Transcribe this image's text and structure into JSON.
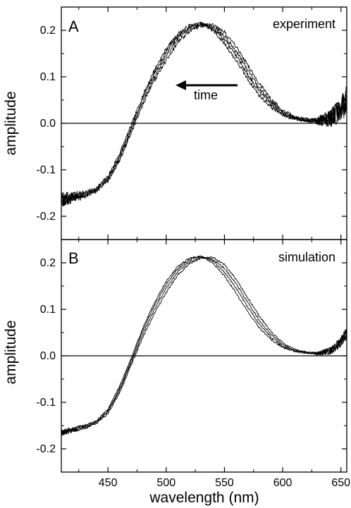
{
  "chart_data": [
    {
      "type": "line",
      "panel_label": "A",
      "annotation": "experiment",
      "arrow_label": "time",
      "ylabel": "amplitude",
      "xlabel": "",
      "xlim": [
        410,
        655
      ],
      "ylim": [
        -0.25,
        0.25
      ],
      "xticks": [
        "450",
        "500",
        "550",
        "600",
        "650"
      ],
      "yticks": [
        "-0.2",
        "-0.1",
        "0.0",
        "0.1",
        "0.2"
      ],
      "noise": "high",
      "series": [
        {
          "x": [
            410,
            430,
            440,
            450,
            460,
            470,
            480,
            490,
            500,
            510,
            520,
            530,
            540,
            550,
            560,
            570,
            580,
            590,
            600,
            610,
            620,
            630,
            640,
            645,
            650,
            655
          ],
          "y": [
            -0.165,
            -0.15,
            -0.14,
            -0.115,
            -0.065,
            -0.005,
            0.06,
            0.115,
            0.16,
            0.192,
            0.21,
            0.214,
            0.2,
            0.172,
            0.135,
            0.095,
            0.06,
            0.035,
            0.018,
            0.01,
            0.006,
            0.005,
            0.01,
            0.018,
            0.03,
            0.05
          ]
        },
        {
          "x": [
            410,
            430,
            440,
            450,
            460,
            470,
            480,
            490,
            500,
            510,
            520,
            530,
            540,
            550,
            560,
            570,
            580,
            590,
            600,
            610,
            620,
            630,
            640,
            645,
            650,
            655
          ],
          "y": [
            -0.165,
            -0.152,
            -0.142,
            -0.118,
            -0.07,
            -0.01,
            0.055,
            0.108,
            0.153,
            0.187,
            0.207,
            0.214,
            0.204,
            0.18,
            0.145,
            0.105,
            0.068,
            0.04,
            0.02,
            0.011,
            0.007,
            0.005,
            0.01,
            0.018,
            0.03,
            0.05
          ]
        },
        {
          "x": [
            410,
            430,
            440,
            450,
            460,
            470,
            480,
            490,
            500,
            510,
            520,
            530,
            540,
            550,
            560,
            570,
            580,
            590,
            600,
            610,
            620,
            630,
            640,
            645,
            650,
            655
          ],
          "y": [
            -0.165,
            -0.154,
            -0.144,
            -0.121,
            -0.075,
            -0.015,
            0.048,
            0.1,
            0.145,
            0.181,
            0.203,
            0.212,
            0.208,
            0.188,
            0.155,
            0.115,
            0.076,
            0.046,
            0.024,
            0.012,
            0.007,
            0.005,
            0.01,
            0.018,
            0.03,
            0.05
          ]
        },
        {
          "x": [
            410,
            430,
            440,
            450,
            460,
            470,
            480,
            490,
            500,
            510,
            520,
            530,
            540,
            550,
            560,
            570,
            580,
            590,
            600,
            610,
            620,
            630,
            640,
            645,
            650,
            655
          ],
          "y": [
            -0.165,
            -0.156,
            -0.146,
            -0.124,
            -0.08,
            -0.02,
            0.04,
            0.092,
            0.136,
            0.174,
            0.198,
            0.21,
            0.212,
            0.196,
            0.165,
            0.125,
            0.085,
            0.052,
            0.028,
            0.014,
            0.008,
            0.005,
            0.01,
            0.018,
            0.03,
            0.05
          ]
        }
      ]
    },
    {
      "type": "line",
      "panel_label": "B",
      "annotation": "simulation",
      "ylabel": "amplitude",
      "xlabel": "wavelength (nm)",
      "xlim": [
        410,
        655
      ],
      "ylim": [
        -0.25,
        0.25
      ],
      "xticks": [
        "450",
        "500",
        "550",
        "600",
        "650"
      ],
      "yticks": [
        "-0.2",
        "-0.1",
        "0.0",
        "0.1",
        "0.2"
      ],
      "noise": "low",
      "series": [
        {
          "x": [
            410,
            430,
            440,
            450,
            460,
            470,
            480,
            490,
            500,
            510,
            520,
            530,
            540,
            550,
            560,
            570,
            580,
            590,
            600,
            610,
            620,
            630,
            640,
            645,
            650,
            655
          ],
          "y": [
            -0.165,
            -0.15,
            -0.14,
            -0.115,
            -0.065,
            -0.005,
            0.06,
            0.115,
            0.16,
            0.192,
            0.21,
            0.214,
            0.2,
            0.172,
            0.135,
            0.095,
            0.06,
            0.035,
            0.018,
            0.01,
            0.006,
            0.005,
            0.01,
            0.018,
            0.03,
            0.05
          ]
        },
        {
          "x": [
            410,
            430,
            440,
            450,
            460,
            470,
            480,
            490,
            500,
            510,
            520,
            530,
            540,
            550,
            560,
            570,
            580,
            590,
            600,
            610,
            620,
            630,
            640,
            645,
            650,
            655
          ],
          "y": [
            -0.165,
            -0.152,
            -0.142,
            -0.118,
            -0.07,
            -0.01,
            0.055,
            0.108,
            0.153,
            0.187,
            0.207,
            0.214,
            0.204,
            0.18,
            0.145,
            0.105,
            0.068,
            0.04,
            0.02,
            0.011,
            0.007,
            0.005,
            0.01,
            0.018,
            0.03,
            0.05
          ]
        },
        {
          "x": [
            410,
            430,
            440,
            450,
            460,
            470,
            480,
            490,
            500,
            510,
            520,
            530,
            540,
            550,
            560,
            570,
            580,
            590,
            600,
            610,
            620,
            630,
            640,
            645,
            650,
            655
          ],
          "y": [
            -0.165,
            -0.154,
            -0.144,
            -0.121,
            -0.075,
            -0.015,
            0.048,
            0.1,
            0.145,
            0.181,
            0.203,
            0.212,
            0.208,
            0.188,
            0.155,
            0.115,
            0.076,
            0.046,
            0.024,
            0.012,
            0.007,
            0.005,
            0.01,
            0.018,
            0.03,
            0.05
          ]
        },
        {
          "x": [
            410,
            430,
            440,
            450,
            460,
            470,
            480,
            490,
            500,
            510,
            520,
            530,
            540,
            550,
            560,
            570,
            580,
            590,
            600,
            610,
            620,
            630,
            640,
            645,
            650,
            655
          ],
          "y": [
            -0.165,
            -0.156,
            -0.146,
            -0.124,
            -0.08,
            -0.02,
            0.04,
            0.092,
            0.136,
            0.174,
            0.198,
            0.21,
            0.212,
            0.196,
            0.165,
            0.125,
            0.085,
            0.052,
            0.028,
            0.014,
            0.008,
            0.005,
            0.01,
            0.018,
            0.03,
            0.05
          ]
        }
      ]
    }
  ]
}
